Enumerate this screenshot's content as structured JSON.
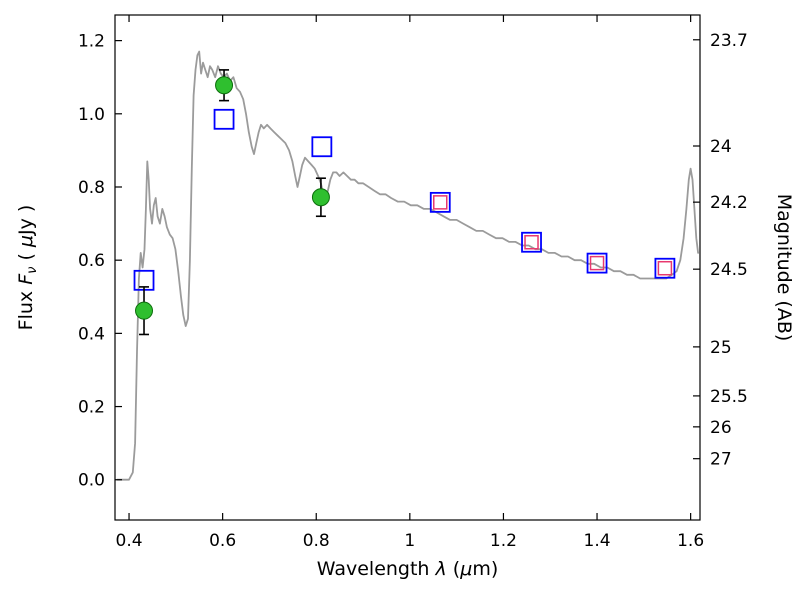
{
  "figure": {
    "background": "#ffffff"
  },
  "chart_data": {
    "type": "line",
    "title": "",
    "grid": false,
    "legend": null,
    "xlabel_text": "Wavelength λ (μm)",
    "xlabel_segments": [
      {
        "t": "Wavelength  ",
        "style": "normal"
      },
      {
        "t": "λ",
        "style": "italic"
      },
      {
        "t": " (",
        "style": "normal"
      },
      {
        "t": "μ",
        "style": "italic"
      },
      {
        "t": "m)",
        "style": "normal"
      }
    ],
    "ylabel_left_text": "Flux Fν ( μJy )",
    "ylabel_left_segments": [
      {
        "t": "Flux  ",
        "style": "normal"
      },
      {
        "t": "F",
        "style": "italic"
      },
      {
        "t": "ν",
        "style": "sub-italic"
      },
      {
        "t": "  ( ",
        "style": "normal"
      },
      {
        "t": "μ",
        "style": "italic"
      },
      {
        "t": "Jy )",
        "style": "normal"
      }
    ],
    "ylabel_right_text": "Magnitude (AB)",
    "ylabel_right_segments": [
      {
        "t": "Magnitude (AB)",
        "style": "normal"
      }
    ],
    "xlim": [
      0.37,
      1.62
    ],
    "ylim": [
      -0.11,
      1.27
    ],
    "ab_zeropoint_ujy": 23.9,
    "x_ticks": [
      {
        "v": 0.4,
        "label": "0.4"
      },
      {
        "v": 0.6,
        "label": "0.6"
      },
      {
        "v": 0.8,
        "label": "0.8"
      },
      {
        "v": 1.0,
        "label": "1"
      },
      {
        "v": 1.2,
        "label": "1.2"
      },
      {
        "v": 1.4,
        "label": "1.4"
      },
      {
        "v": 1.6,
        "label": "1.6"
      }
    ],
    "y_ticks_left": [
      {
        "v": 0.0,
        "label": "0.0"
      },
      {
        "v": 0.2,
        "label": "0.2"
      },
      {
        "v": 0.4,
        "label": "0.4"
      },
      {
        "v": 0.6,
        "label": "0.6"
      },
      {
        "v": 0.8,
        "label": "0.8"
      },
      {
        "v": 1.0,
        "label": "1.0"
      },
      {
        "v": 1.2,
        "label": "1.2"
      }
    ],
    "y_ticks_right": [
      {
        "mag": 23.7,
        "label": "23.7"
      },
      {
        "mag": 24.0,
        "label": "24"
      },
      {
        "mag": 24.2,
        "label": "24.2"
      },
      {
        "mag": 24.5,
        "label": "24.5"
      },
      {
        "mag": 25.0,
        "label": "25"
      },
      {
        "mag": 25.5,
        "label": "25.5"
      },
      {
        "mag": 26.0,
        "label": "26"
      },
      {
        "mag": 27.0,
        "label": "27"
      }
    ],
    "series": [
      {
        "name": "model-spectrum",
        "type": "line",
        "color": "#9b9b9b",
        "line_width": 1.8,
        "points": [
          [
            0.375,
            0.0
          ],
          [
            0.4,
            0.0
          ],
          [
            0.408,
            0.02
          ],
          [
            0.413,
            0.1
          ],
          [
            0.417,
            0.35
          ],
          [
            0.421,
            0.55
          ],
          [
            0.425,
            0.62
          ],
          [
            0.429,
            0.58
          ],
          [
            0.433,
            0.63
          ],
          [
            0.436,
            0.74
          ],
          [
            0.439,
            0.87
          ],
          [
            0.442,
            0.82
          ],
          [
            0.445,
            0.74
          ],
          [
            0.449,
            0.7
          ],
          [
            0.453,
            0.75
          ],
          [
            0.457,
            0.77
          ],
          [
            0.461,
            0.72
          ],
          [
            0.466,
            0.7
          ],
          [
            0.471,
            0.74
          ],
          [
            0.476,
            0.72
          ],
          [
            0.481,
            0.69
          ],
          [
            0.487,
            0.67
          ],
          [
            0.493,
            0.66
          ],
          [
            0.499,
            0.63
          ],
          [
            0.505,
            0.57
          ],
          [
            0.511,
            0.5
          ],
          [
            0.516,
            0.45
          ],
          [
            0.521,
            0.42
          ],
          [
            0.526,
            0.44
          ],
          [
            0.53,
            0.6
          ],
          [
            0.534,
            0.85
          ],
          [
            0.538,
            1.05
          ],
          [
            0.542,
            1.12
          ],
          [
            0.546,
            1.16
          ],
          [
            0.55,
            1.17
          ],
          [
            0.554,
            1.11
          ],
          [
            0.558,
            1.14
          ],
          [
            0.563,
            1.12
          ],
          [
            0.568,
            1.1
          ],
          [
            0.573,
            1.13
          ],
          [
            0.578,
            1.12
          ],
          [
            0.584,
            1.1
          ],
          [
            0.59,
            1.13
          ],
          [
            0.596,
            1.11
          ],
          [
            0.602,
            1.1
          ],
          [
            0.609,
            1.11
          ],
          [
            0.616,
            1.09
          ],
          [
            0.623,
            1.1
          ],
          [
            0.63,
            1.07
          ],
          [
            0.637,
            1.06
          ],
          [
            0.644,
            1.04
          ],
          [
            0.65,
            1.0
          ],
          [
            0.656,
            0.95
          ],
          [
            0.662,
            0.91
          ],
          [
            0.667,
            0.89
          ],
          [
            0.672,
            0.92
          ],
          [
            0.677,
            0.95
          ],
          [
            0.682,
            0.97
          ],
          [
            0.688,
            0.96
          ],
          [
            0.695,
            0.97
          ],
          [
            0.702,
            0.96
          ],
          [
            0.71,
            0.95
          ],
          [
            0.718,
            0.94
          ],
          [
            0.726,
            0.93
          ],
          [
            0.734,
            0.92
          ],
          [
            0.742,
            0.9
          ],
          [
            0.749,
            0.87
          ],
          [
            0.755,
            0.83
          ],
          [
            0.76,
            0.8
          ],
          [
            0.765,
            0.83
          ],
          [
            0.77,
            0.86
          ],
          [
            0.776,
            0.88
          ],
          [
            0.783,
            0.87
          ],
          [
            0.79,
            0.86
          ],
          [
            0.797,
            0.85
          ],
          [
            0.804,
            0.83
          ],
          [
            0.81,
            0.81
          ],
          [
            0.815,
            0.78
          ],
          [
            0.82,
            0.77
          ],
          [
            0.825,
            0.79
          ],
          [
            0.83,
            0.82
          ],
          [
            0.836,
            0.84
          ],
          [
            0.843,
            0.84
          ],
          [
            0.85,
            0.83
          ],
          [
            0.858,
            0.84
          ],
          [
            0.866,
            0.83
          ],
          [
            0.874,
            0.82
          ],
          [
            0.882,
            0.82
          ],
          [
            0.89,
            0.81
          ],
          [
            0.9,
            0.81
          ],
          [
            0.912,
            0.8
          ],
          [
            0.924,
            0.79
          ],
          [
            0.936,
            0.78
          ],
          [
            0.948,
            0.78
          ],
          [
            0.96,
            0.77
          ],
          [
            0.974,
            0.76
          ],
          [
            0.988,
            0.76
          ],
          [
            1.002,
            0.75
          ],
          [
            1.016,
            0.75
          ],
          [
            1.03,
            0.74
          ],
          [
            1.044,
            0.74
          ],
          [
            1.058,
            0.73
          ],
          [
            1.072,
            0.72
          ],
          [
            1.086,
            0.71
          ],
          [
            1.1,
            0.71
          ],
          [
            1.114,
            0.7
          ],
          [
            1.128,
            0.69
          ],
          [
            1.142,
            0.68
          ],
          [
            1.156,
            0.68
          ],
          [
            1.17,
            0.67
          ],
          [
            1.184,
            0.66
          ],
          [
            1.198,
            0.66
          ],
          [
            1.212,
            0.65
          ],
          [
            1.226,
            0.65
          ],
          [
            1.24,
            0.64
          ],
          [
            1.254,
            0.64
          ],
          [
            1.268,
            0.63
          ],
          [
            1.282,
            0.63
          ],
          [
            1.296,
            0.62
          ],
          [
            1.31,
            0.62
          ],
          [
            1.324,
            0.61
          ],
          [
            1.338,
            0.61
          ],
          [
            1.352,
            0.6
          ],
          [
            1.366,
            0.6
          ],
          [
            1.38,
            0.59
          ],
          [
            1.394,
            0.59
          ],
          [
            1.408,
            0.58
          ],
          [
            1.422,
            0.58
          ],
          [
            1.436,
            0.57
          ],
          [
            1.45,
            0.57
          ],
          [
            1.464,
            0.56
          ],
          [
            1.478,
            0.56
          ],
          [
            1.492,
            0.55
          ],
          [
            1.506,
            0.55
          ],
          [
            1.52,
            0.55
          ],
          [
            1.534,
            0.55
          ],
          [
            1.548,
            0.55
          ],
          [
            1.56,
            0.56
          ],
          [
            1.57,
            0.57
          ],
          [
            1.578,
            0.6
          ],
          [
            1.585,
            0.66
          ],
          [
            1.591,
            0.74
          ],
          [
            1.596,
            0.82
          ],
          [
            1.6,
            0.85
          ],
          [
            1.604,
            0.82
          ],
          [
            1.608,
            0.74
          ],
          [
            1.612,
            0.66
          ],
          [
            1.616,
            0.62
          ]
        ]
      },
      {
        "name": "model-photometry-blue-squares",
        "type": "scatter",
        "marker": "open-square",
        "color": "#0000ff",
        "marker_size": 19,
        "stroke_width": 1.8,
        "points": [
          [
            0.432,
            0.545
          ],
          [
            0.603,
            0.985
          ],
          [
            0.812,
            0.91
          ],
          [
            1.065,
            0.758
          ],
          [
            1.26,
            0.649
          ],
          [
            1.4,
            0.592
          ],
          [
            1.545,
            0.578
          ]
        ]
      },
      {
        "name": "fit-photometry-red-squares",
        "type": "scatter",
        "marker": "open-square",
        "color": "#e8396e",
        "marker_size": 13,
        "stroke_width": 1.5,
        "points": [
          [
            1.065,
            0.758
          ],
          [
            1.26,
            0.649
          ],
          [
            1.4,
            0.592
          ],
          [
            1.545,
            0.578
          ]
        ]
      },
      {
        "name": "observed-photometry-green-circles",
        "type": "scatter",
        "marker": "filled-circle",
        "color": "#2fbf2f",
        "edge_color": "#0d6e0d",
        "marker_size": 17,
        "errorbar_color": "#000000",
        "points": [
          [
            0.432,
            0.462,
            0.065
          ],
          [
            0.603,
            1.078,
            0.042
          ],
          [
            0.81,
            0.772,
            0.052
          ]
        ]
      }
    ]
  }
}
